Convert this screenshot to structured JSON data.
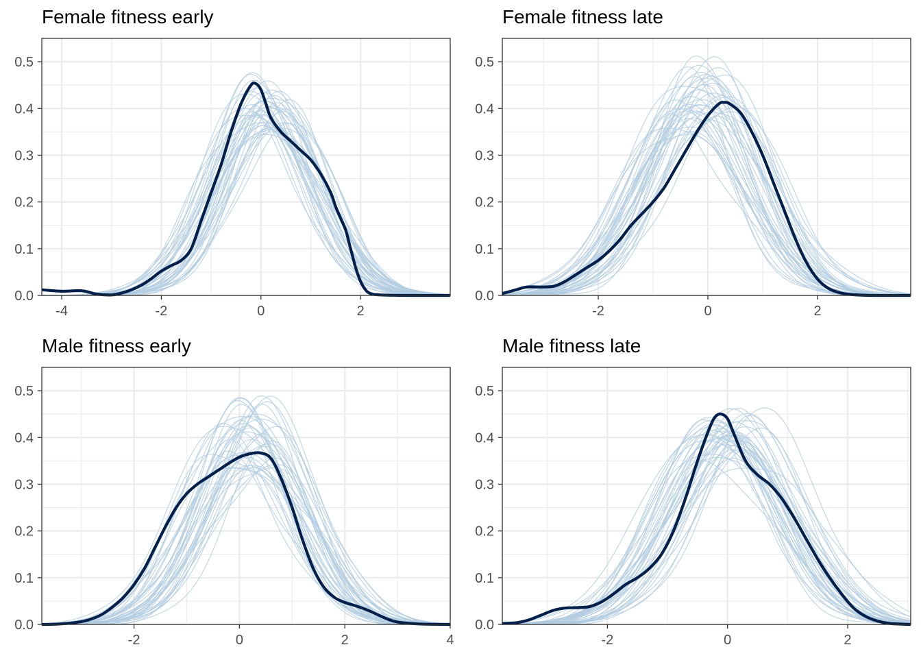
{
  "colors": {
    "replicate": "#b3cde0",
    "observed": "#011f4b",
    "grid": "#ebebeb",
    "border": "#333333"
  },
  "chart_data": [
    {
      "type": "line",
      "subtype": "density-overlay",
      "title": "Female fitness early",
      "xlim": [
        -4.4,
        3.8
      ],
      "ylim": [
        0,
        0.55
      ],
      "xticks": [
        -4,
        -2,
        0,
        2
      ],
      "xtick_labels": [
        "-4",
        "-2",
        "0",
        "2"
      ],
      "yticks": [
        0,
        0.1,
        0.2,
        0.3,
        0.4,
        0.5
      ],
      "ytick_labels": [
        "0.0",
        "0.1",
        "0.2",
        "0.3",
        "0.4",
        "0.5"
      ],
      "replicates": {
        "count": 40,
        "peak_x_range": [
          -0.3,
          0.5
        ],
        "peak_y_range": [
          0.35,
          0.46
        ],
        "sd_range": [
          0.9,
          1.05
        ]
      },
      "observed": {
        "x": [
          -4.4,
          -4.0,
          -3.6,
          -3.3,
          -3.0,
          -2.8,
          -2.6,
          -2.4,
          -2.2,
          -2.0,
          -1.8,
          -1.6,
          -1.4,
          -1.2,
          -1.0,
          -0.8,
          -0.6,
          -0.4,
          -0.2,
          -0.1,
          0.0,
          0.1,
          0.2,
          0.4,
          0.6,
          0.8,
          1.0,
          1.2,
          1.4,
          1.5,
          1.6,
          1.7,
          1.8,
          1.9,
          2.0,
          2.1,
          2.2,
          2.4,
          3.0,
          3.8
        ],
        "y": [
          0.012,
          0.009,
          0.01,
          0.003,
          0.001,
          0.005,
          0.012,
          0.022,
          0.036,
          0.052,
          0.064,
          0.075,
          0.1,
          0.16,
          0.22,
          0.28,
          0.35,
          0.41,
          0.45,
          0.453,
          0.44,
          0.41,
          0.38,
          0.35,
          0.33,
          0.31,
          0.29,
          0.26,
          0.22,
          0.19,
          0.165,
          0.14,
          0.1,
          0.06,
          0.03,
          0.012,
          0.004,
          0.001,
          0.0,
          0.0
        ]
      }
    },
    {
      "type": "line",
      "subtype": "density-overlay",
      "title": "Female fitness late",
      "xlim": [
        -3.75,
        3.7
      ],
      "ylim": [
        0,
        0.55
      ],
      "xticks": [
        -2,
        0,
        2
      ],
      "xtick_labels": [
        "-2",
        "0",
        "2"
      ],
      "yticks": [
        0,
        0.1,
        0.2,
        0.3,
        0.4,
        0.5
      ],
      "ytick_labels": [
        "0.0",
        "0.1",
        "0.2",
        "0.3",
        "0.4",
        "0.5"
      ],
      "replicates": {
        "count": 40,
        "peak_x_range": [
          -0.6,
          0.3
        ],
        "peak_y_range": [
          0.34,
          0.5
        ],
        "sd_range": [
          0.85,
          1.15
        ]
      },
      "observed": {
        "x": [
          -3.75,
          -3.5,
          -3.3,
          -3.0,
          -2.8,
          -2.6,
          -2.4,
          -2.2,
          -2.0,
          -1.8,
          -1.6,
          -1.4,
          -1.2,
          -1.0,
          -0.8,
          -0.6,
          -0.4,
          -0.2,
          0.0,
          0.2,
          0.3,
          0.4,
          0.6,
          0.8,
          1.0,
          1.2,
          1.4,
          1.6,
          1.8,
          2.0,
          2.2,
          2.4,
          2.6,
          3.0,
          3.7
        ],
        "y": [
          0.004,
          0.012,
          0.018,
          0.018,
          0.02,
          0.03,
          0.045,
          0.06,
          0.075,
          0.095,
          0.12,
          0.15,
          0.175,
          0.2,
          0.23,
          0.27,
          0.31,
          0.35,
          0.385,
          0.41,
          0.413,
          0.41,
          0.39,
          0.35,
          0.3,
          0.24,
          0.18,
          0.12,
          0.07,
          0.035,
          0.015,
          0.006,
          0.002,
          0.0,
          0.0
        ]
      }
    },
    {
      "type": "line",
      "subtype": "density-overlay",
      "title": "Male fitness early",
      "xlim": [
        -3.75,
        4.0
      ],
      "ylim": [
        0,
        0.55
      ],
      "xticks": [
        -2,
        0,
        2,
        4
      ],
      "xtick_labels": [
        "-2",
        "0",
        "2",
        "4"
      ],
      "yticks": [
        0,
        0.1,
        0.2,
        0.3,
        0.4,
        0.5
      ],
      "ytick_labels": [
        "0.0",
        "0.1",
        "0.2",
        "0.3",
        "0.4",
        "0.5"
      ],
      "replicates": {
        "count": 40,
        "peak_x_range": [
          -0.3,
          0.6
        ],
        "peak_y_range": [
          0.34,
          0.49
        ],
        "sd_range": [
          0.85,
          1.1
        ]
      },
      "observed": {
        "x": [
          -3.75,
          -3.4,
          -3.0,
          -2.8,
          -2.6,
          -2.4,
          -2.2,
          -2.0,
          -1.8,
          -1.6,
          -1.4,
          -1.2,
          -1.0,
          -0.8,
          -0.6,
          -0.4,
          -0.2,
          0.0,
          0.2,
          0.4,
          0.6,
          0.8,
          1.0,
          1.2,
          1.4,
          1.6,
          1.8,
          2.0,
          2.2,
          2.4,
          2.6,
          2.8,
          3.0,
          3.4,
          4.0
        ],
        "y": [
          0.0,
          0.001,
          0.006,
          0.012,
          0.022,
          0.038,
          0.058,
          0.085,
          0.12,
          0.165,
          0.21,
          0.25,
          0.28,
          0.3,
          0.315,
          0.33,
          0.345,
          0.358,
          0.365,
          0.367,
          0.355,
          0.31,
          0.25,
          0.18,
          0.12,
          0.08,
          0.058,
          0.047,
          0.04,
          0.032,
          0.022,
          0.012,
          0.005,
          0.001,
          0.0
        ]
      }
    },
    {
      "type": "line",
      "subtype": "density-overlay",
      "title": "Male fitness late",
      "xlim": [
        -3.75,
        3.05
      ],
      "ylim": [
        0,
        0.55
      ],
      "xticks": [
        -2,
        0,
        2
      ],
      "xtick_labels": [
        "-2",
        "0",
        "2"
      ],
      "yticks": [
        0,
        0.1,
        0.2,
        0.3,
        0.4,
        0.5
      ],
      "ytick_labels": [
        "0.0",
        "0.1",
        "0.2",
        "0.3",
        "0.4",
        "0.5"
      ],
      "replicates": {
        "count": 40,
        "peak_x_range": [
          -0.4,
          0.45
        ],
        "peak_y_range": [
          0.34,
          0.46
        ],
        "sd_range": [
          0.85,
          1.1
        ]
      },
      "observed": {
        "x": [
          -3.75,
          -3.5,
          -3.3,
          -3.1,
          -2.9,
          -2.7,
          -2.5,
          -2.3,
          -2.1,
          -1.9,
          -1.7,
          -1.5,
          -1.3,
          -1.1,
          -0.9,
          -0.7,
          -0.5,
          -0.3,
          -0.2,
          -0.1,
          0.0,
          0.1,
          0.3,
          0.5,
          0.7,
          0.9,
          1.1,
          1.3,
          1.5,
          1.7,
          1.9,
          2.1,
          2.3,
          2.5,
          2.7,
          3.05
        ],
        "y": [
          0.002,
          0.004,
          0.01,
          0.02,
          0.03,
          0.035,
          0.036,
          0.038,
          0.048,
          0.065,
          0.085,
          0.1,
          0.12,
          0.15,
          0.2,
          0.27,
          0.35,
          0.42,
          0.445,
          0.45,
          0.44,
          0.41,
          0.35,
          0.32,
          0.3,
          0.27,
          0.23,
          0.185,
          0.14,
          0.1,
          0.065,
          0.035,
          0.017,
          0.007,
          0.002,
          0.0
        ]
      }
    }
  ]
}
